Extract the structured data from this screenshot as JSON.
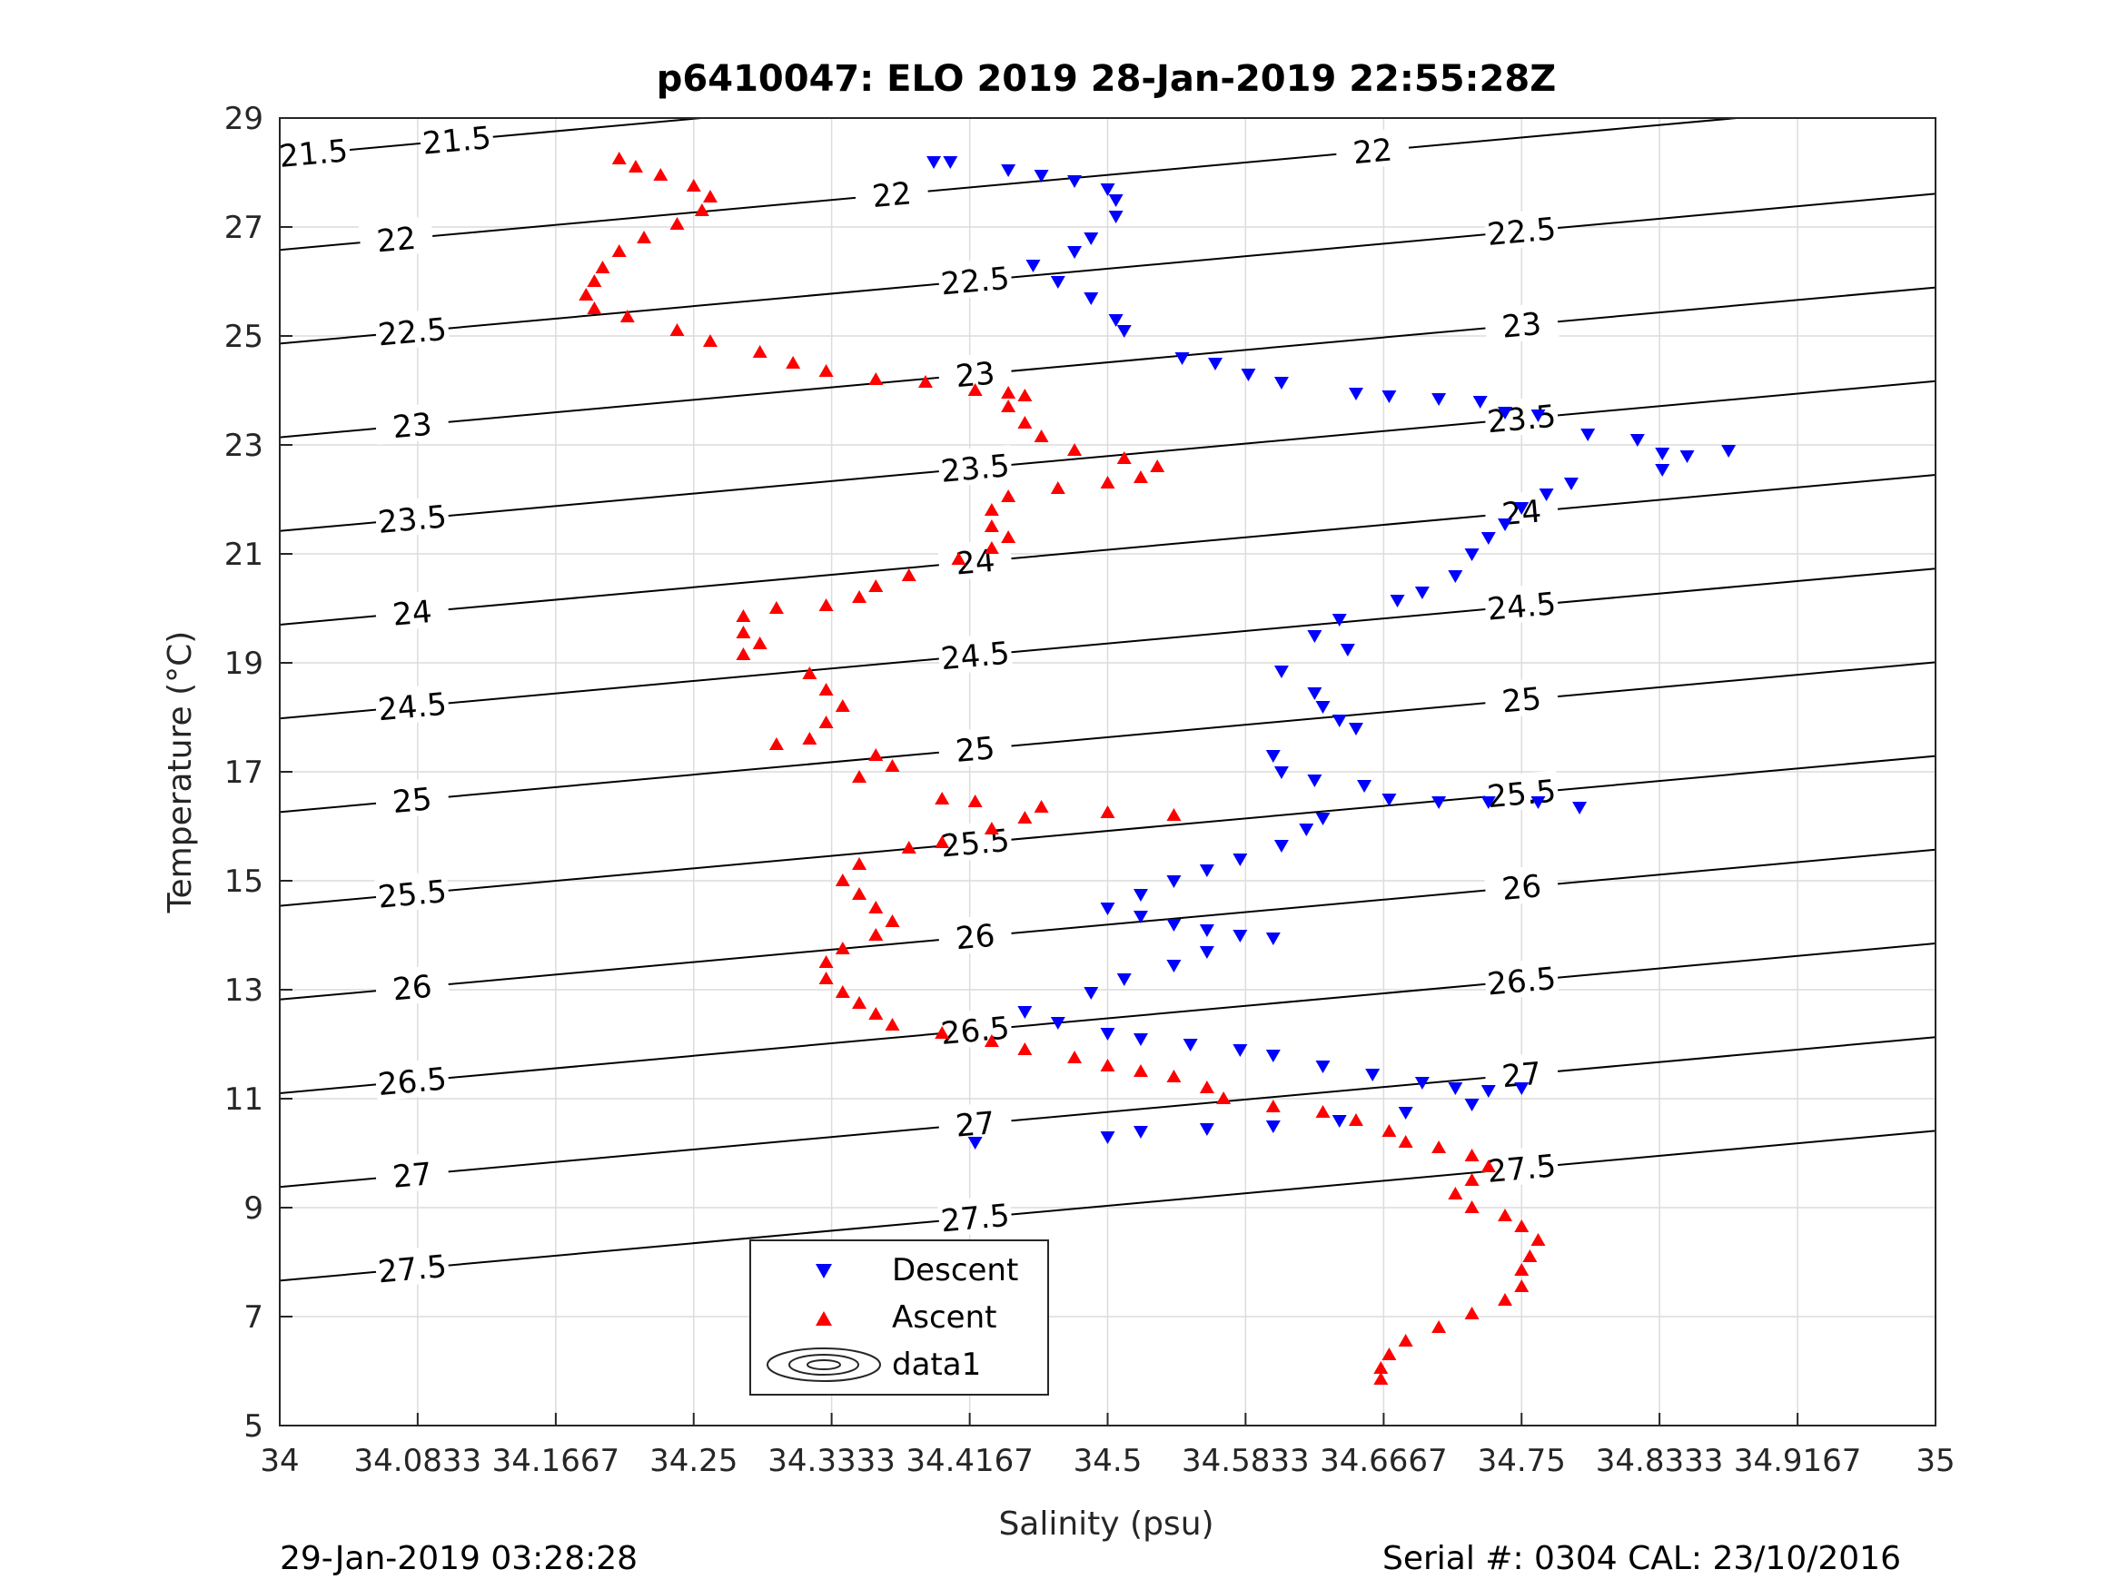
{
  "chart_data": {
    "type": "scatter",
    "title": "p6410047: ELO 2019 28-Jan-2019 22:55:28Z",
    "xlabel": "Salinity (psu)",
    "ylabel": "Temperature (°C)",
    "xlim": [
      34,
      35
    ],
    "ylim": [
      5,
      29
    ],
    "x_ticks": [
      "34",
      "34.0833",
      "34.1667",
      "34.25",
      "34.3333",
      "34.4167",
      "34.5",
      "34.5833",
      "34.6667",
      "34.75",
      "34.8333",
      "34.9167",
      "35"
    ],
    "y_ticks": [
      "5",
      "7",
      "9",
      "11",
      "13",
      "15",
      "17",
      "19",
      "21",
      "23",
      "25",
      "27",
      "29"
    ],
    "grid": true,
    "legend_position": "bottom-center",
    "legend": [
      "Descent",
      "Ascent",
      "data1"
    ],
    "contour_levels": [
      "21.5",
      "22",
      "22.5",
      "23",
      "23.5",
      "24",
      "24.5",
      "25",
      "25.5",
      "26",
      "26.5",
      "27",
      "27.5"
    ],
    "series": [
      {
        "name": "Descent",
        "marker": "triangle-down",
        "color": "#0000ff",
        "points": [
          [
            34.395,
            28.2
          ],
          [
            34.405,
            28.2
          ],
          [
            34.44,
            28.05
          ],
          [
            34.46,
            27.95
          ],
          [
            34.48,
            27.85
          ],
          [
            34.5,
            27.7
          ],
          [
            34.505,
            27.5
          ],
          [
            34.505,
            27.2
          ],
          [
            34.49,
            26.8
          ],
          [
            34.48,
            26.55
          ],
          [
            34.455,
            26.3
          ],
          [
            34.47,
            26.0
          ],
          [
            34.49,
            25.7
          ],
          [
            34.505,
            25.3
          ],
          [
            34.51,
            25.1
          ],
          [
            34.545,
            24.6
          ],
          [
            34.565,
            24.5
          ],
          [
            34.585,
            24.3
          ],
          [
            34.605,
            24.15
          ],
          [
            34.65,
            23.95
          ],
          [
            34.67,
            23.9
          ],
          [
            34.7,
            23.85
          ],
          [
            34.725,
            23.8
          ],
          [
            34.74,
            23.6
          ],
          [
            34.76,
            23.55
          ],
          [
            34.79,
            23.2
          ],
          [
            34.82,
            23.1
          ],
          [
            34.835,
            22.85
          ],
          [
            34.835,
            22.55
          ],
          [
            34.875,
            22.9
          ],
          [
            34.85,
            22.8
          ],
          [
            34.78,
            22.3
          ],
          [
            34.765,
            22.1
          ],
          [
            34.75,
            21.85
          ],
          [
            34.74,
            21.55
          ],
          [
            34.73,
            21.3
          ],
          [
            34.72,
            21.0
          ],
          [
            34.71,
            20.6
          ],
          [
            34.69,
            20.3
          ],
          [
            34.675,
            20.15
          ],
          [
            34.64,
            19.8
          ],
          [
            34.625,
            19.5
          ],
          [
            34.645,
            19.25
          ],
          [
            34.605,
            18.85
          ],
          [
            34.625,
            18.45
          ],
          [
            34.63,
            18.2
          ],
          [
            34.64,
            17.95
          ],
          [
            34.65,
            17.8
          ],
          [
            34.6,
            17.3
          ],
          [
            34.605,
            17.0
          ],
          [
            34.625,
            16.85
          ],
          [
            34.655,
            16.75
          ],
          [
            34.67,
            16.5
          ],
          [
            34.7,
            16.45
          ],
          [
            34.73,
            16.45
          ],
          [
            34.76,
            16.45
          ],
          [
            34.785,
            16.35
          ],
          [
            34.63,
            16.15
          ],
          [
            34.62,
            15.95
          ],
          [
            34.605,
            15.65
          ],
          [
            34.58,
            15.4
          ],
          [
            34.56,
            15.2
          ],
          [
            34.54,
            15.0
          ],
          [
            34.52,
            14.75
          ],
          [
            34.5,
            14.5
          ],
          [
            34.52,
            14.35
          ],
          [
            34.54,
            14.2
          ],
          [
            34.56,
            14.1
          ],
          [
            34.58,
            14.0
          ],
          [
            34.6,
            13.95
          ],
          [
            34.56,
            13.7
          ],
          [
            34.54,
            13.45
          ],
          [
            34.51,
            13.2
          ],
          [
            34.49,
            12.95
          ],
          [
            34.45,
            12.6
          ],
          [
            34.47,
            12.4
          ],
          [
            34.5,
            12.2
          ],
          [
            34.52,
            12.1
          ],
          [
            34.55,
            12.0
          ],
          [
            34.58,
            11.9
          ],
          [
            34.6,
            11.8
          ],
          [
            34.63,
            11.6
          ],
          [
            34.66,
            11.45
          ],
          [
            34.69,
            11.3
          ],
          [
            34.71,
            11.2
          ],
          [
            34.73,
            11.15
          ],
          [
            34.75,
            11.2
          ],
          [
            34.72,
            10.9
          ],
          [
            34.68,
            10.75
          ],
          [
            34.64,
            10.6
          ],
          [
            34.6,
            10.5
          ],
          [
            34.56,
            10.45
          ],
          [
            34.52,
            10.4
          ],
          [
            34.5,
            10.3
          ],
          [
            34.42,
            10.2
          ]
        ]
      },
      {
        "name": "Ascent",
        "marker": "triangle-up",
        "color": "#ff0000",
        "points": [
          [
            34.205,
            28.25
          ],
          [
            34.215,
            28.1
          ],
          [
            34.23,
            27.95
          ],
          [
            34.25,
            27.75
          ],
          [
            34.26,
            27.55
          ],
          [
            34.255,
            27.3
          ],
          [
            34.24,
            27.05
          ],
          [
            34.22,
            26.8
          ],
          [
            34.205,
            26.55
          ],
          [
            34.195,
            26.25
          ],
          [
            34.19,
            26.0
          ],
          [
            34.185,
            25.75
          ],
          [
            34.19,
            25.5
          ],
          [
            34.21,
            25.35
          ],
          [
            34.24,
            25.1
          ],
          [
            34.26,
            24.9
          ],
          [
            34.29,
            24.7
          ],
          [
            34.31,
            24.5
          ],
          [
            34.33,
            24.35
          ],
          [
            34.36,
            24.2
          ],
          [
            34.39,
            24.15
          ],
          [
            34.42,
            24.0
          ],
          [
            34.44,
            23.95
          ],
          [
            34.45,
            23.9
          ],
          [
            34.44,
            23.7
          ],
          [
            34.45,
            23.4
          ],
          [
            34.46,
            23.15
          ],
          [
            34.48,
            22.9
          ],
          [
            34.51,
            22.75
          ],
          [
            34.53,
            22.6
          ],
          [
            34.52,
            22.4
          ],
          [
            34.5,
            22.3
          ],
          [
            34.47,
            22.2
          ],
          [
            34.44,
            22.05
          ],
          [
            34.43,
            21.8
          ],
          [
            34.43,
            21.5
          ],
          [
            34.44,
            21.3
          ],
          [
            34.43,
            21.1
          ],
          [
            34.41,
            20.9
          ],
          [
            34.38,
            20.6
          ],
          [
            34.36,
            20.4
          ],
          [
            34.35,
            20.2
          ],
          [
            34.33,
            20.05
          ],
          [
            34.3,
            20.0
          ],
          [
            34.28,
            19.85
          ],
          [
            34.28,
            19.55
          ],
          [
            34.29,
            19.35
          ],
          [
            34.28,
            19.15
          ],
          [
            34.32,
            18.8
          ],
          [
            34.33,
            18.5
          ],
          [
            34.34,
            18.2
          ],
          [
            34.33,
            17.9
          ],
          [
            34.32,
            17.6
          ],
          [
            34.3,
            17.5
          ],
          [
            34.36,
            17.3
          ],
          [
            34.37,
            17.1
          ],
          [
            34.35,
            16.9
          ],
          [
            34.4,
            16.5
          ],
          [
            34.42,
            16.45
          ],
          [
            34.46,
            16.35
          ],
          [
            34.5,
            16.25
          ],
          [
            34.54,
            16.2
          ],
          [
            34.45,
            16.15
          ],
          [
            34.43,
            15.95
          ],
          [
            34.4,
            15.7
          ],
          [
            34.38,
            15.6
          ],
          [
            34.35,
            15.3
          ],
          [
            34.34,
            15.0
          ],
          [
            34.35,
            14.75
          ],
          [
            34.36,
            14.5
          ],
          [
            34.37,
            14.25
          ],
          [
            34.36,
            14.0
          ],
          [
            34.34,
            13.75
          ],
          [
            34.33,
            13.5
          ],
          [
            34.33,
            13.2
          ],
          [
            34.34,
            12.95
          ],
          [
            34.35,
            12.75
          ],
          [
            34.36,
            12.55
          ],
          [
            34.37,
            12.35
          ],
          [
            34.4,
            12.2
          ],
          [
            34.43,
            12.05
          ],
          [
            34.45,
            11.9
          ],
          [
            34.48,
            11.75
          ],
          [
            34.5,
            11.6
          ],
          [
            34.52,
            11.5
          ],
          [
            34.54,
            11.4
          ],
          [
            34.56,
            11.2
          ],
          [
            34.57,
            11.0
          ],
          [
            34.6,
            10.85
          ],
          [
            34.63,
            10.75
          ],
          [
            34.65,
            10.6
          ],
          [
            34.67,
            10.4
          ],
          [
            34.68,
            10.2
          ],
          [
            34.7,
            10.1
          ],
          [
            34.72,
            9.95
          ],
          [
            34.73,
            9.75
          ],
          [
            34.72,
            9.5
          ],
          [
            34.71,
            9.25
          ],
          [
            34.72,
            9.0
          ],
          [
            34.74,
            8.85
          ],
          [
            34.75,
            8.65
          ],
          [
            34.76,
            8.4
          ],
          [
            34.755,
            8.1
          ],
          [
            34.75,
            7.85
          ],
          [
            34.75,
            7.55
          ],
          [
            34.74,
            7.3
          ],
          [
            34.72,
            7.05
          ],
          [
            34.7,
            6.8
          ],
          [
            34.68,
            6.55
          ],
          [
            34.67,
            6.3
          ],
          [
            34.665,
            6.05
          ],
          [
            34.665,
            5.85
          ]
        ]
      }
    ]
  },
  "footer": {
    "left": "29-Jan-2019 03:28:28",
    "right": "Serial #: 0304  CAL: 23/10/2016"
  }
}
